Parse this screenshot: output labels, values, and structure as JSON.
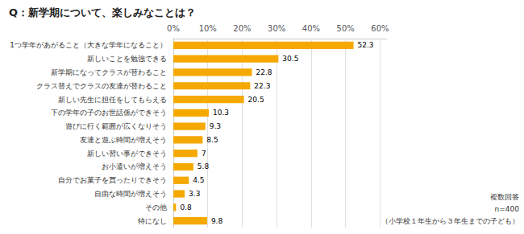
{
  "chart_data": {
    "type": "bar",
    "orientation": "horizontal",
    "title": "Q：新学期について、楽しみなことは？",
    "categories": [
      "特になし",
      "その他",
      "自由な時間が増えそう",
      "自分でお菓子を買ったりできそう",
      "お小遣いが増えそう",
      "新しい習い事ができそう",
      "友達と遊ぶ時間が増えそう",
      "遊びに行く範囲が広くなりそう",
      "下の学年の子のお世話係ができそう",
      "新しい先生に担任をしてもらえる",
      "クラス替えでクラスの友達が替わること",
      "新学期になってクラスが替わること",
      "新しいことを勉強できる",
      "1つ学年があがること（大きな学年になること）"
    ],
    "values": [
      9.8,
      0.8,
      3.3,
      4.5,
      5.8,
      7.0,
      8.5,
      9.3,
      10.3,
      20.5,
      22.3,
      22.8,
      30.5,
      52.3
    ],
    "color": "#F5A800",
    "xlim": [
      0,
      62
    ],
    "xticks": [
      {
        "value": 0,
        "label": "0%"
      },
      {
        "value": 10,
        "label": "10%"
      },
      {
        "value": 20,
        "label": "20%"
      },
      {
        "value": 30,
        "label": "30%"
      },
      {
        "value": 40,
        "label": "40%"
      },
      {
        "value": 50,
        "label": "50%"
      },
      {
        "value": 60,
        "label": "60%"
      }
    ],
    "grid": true,
    "data_labels": true,
    "annotations": [
      "複数回答",
      "n=400",
      "（小学校１年生から３年生までの子ども）"
    ]
  }
}
